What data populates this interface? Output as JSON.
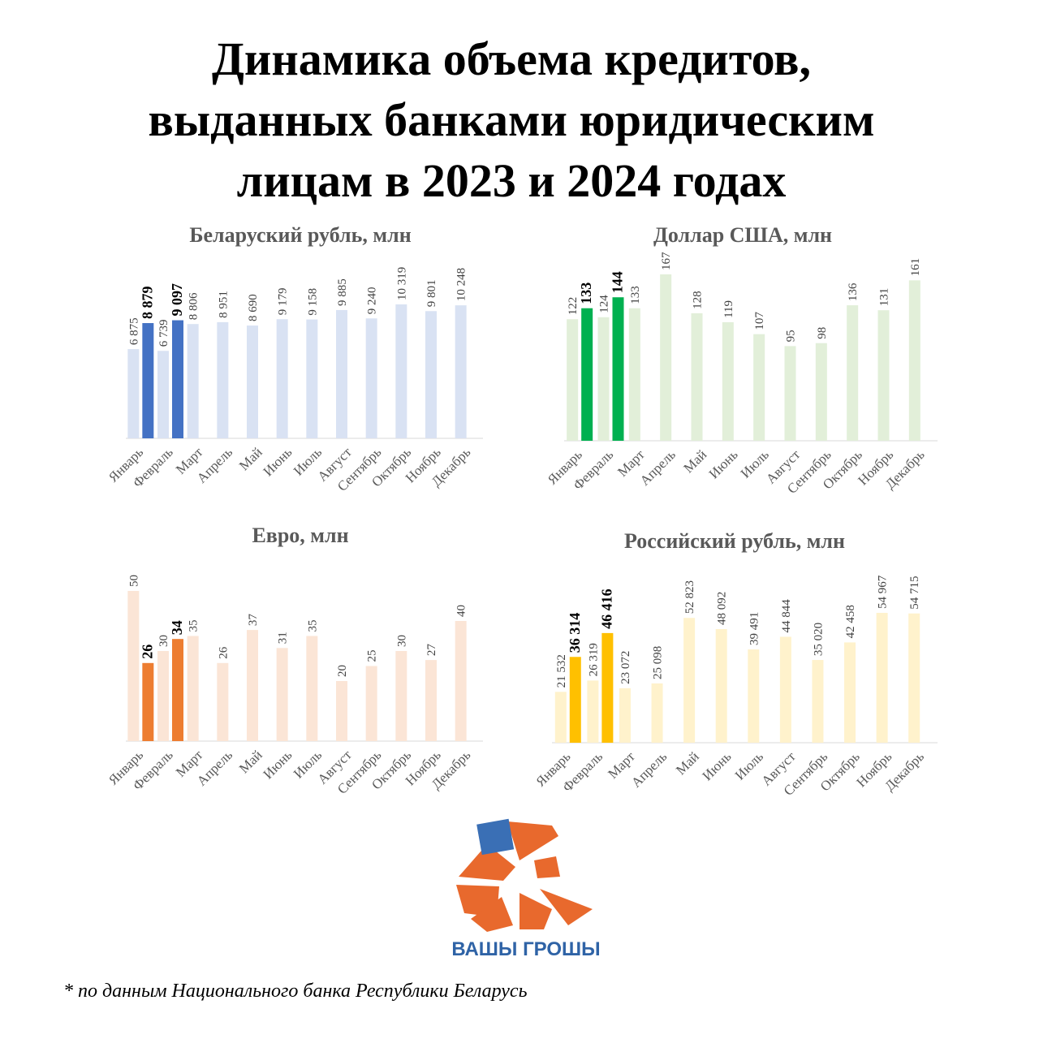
{
  "title": [
    "Динамика объема кредитов,",
    "выданных банками юридическим",
    "лицам в 2023 и 2024 годах"
  ],
  "logo_text": "ВАШЫ ГРОШЫ",
  "footnote": "* по данным Национального банка Республики Беларусь",
  "chart_data": [
    {
      "type": "bar",
      "title": "Беларуский рубль, млн",
      "categories": [
        "Январь",
        "Февраль",
        "Март",
        "Апрель",
        "Май",
        "Июнь",
        "Июль",
        "Август",
        "Сентябрь",
        "Октябрь",
        "Ноябрь",
        "Декабрь"
      ],
      "series": [
        {
          "color": "#d9e2f3",
          "values": [
            6875,
            6739,
            8806,
            8951,
            8690,
            9179,
            9158,
            9885,
            9240,
            10319,
            9801,
            10248
          ],
          "value_labels": [
            "6 875",
            "6 739",
            "8 806",
            "8 951",
            "8 690",
            "9 179",
            "9 158",
            "9 885",
            "9 240",
            "10 319",
            "9 801",
            "10 248"
          ]
        },
        {
          "color": "#4472c4",
          "values": [
            8879,
            9097,
            null,
            null,
            null,
            null,
            null,
            null,
            null,
            null,
            null,
            null
          ],
          "value_labels": [
            "8 879",
            "9 097",
            null,
            null,
            null,
            null,
            null,
            null,
            null,
            null,
            null,
            null
          ]
        }
      ]
    },
    {
      "type": "bar",
      "title": "Доллар США, млн",
      "categories": [
        "Январь",
        "Февраль",
        "Март",
        "Апрель",
        "Май",
        "Июнь",
        "Июль",
        "Август",
        "Сентябрь",
        "Октябрь",
        "Ноябрь",
        "Декабрь"
      ],
      "series": [
        {
          "color": "#e2efd9",
          "values": [
            122,
            124,
            133,
            167,
            128,
            119,
            107,
            95,
            98,
            136,
            131,
            161
          ]
        },
        {
          "color": "#00b050",
          "values": [
            133,
            144,
            null,
            null,
            null,
            null,
            null,
            null,
            null,
            null,
            null,
            null
          ]
        }
      ]
    },
    {
      "type": "bar",
      "title": "Евро, млн",
      "categories": [
        "Январь",
        "Февраль",
        "Март",
        "Апрель",
        "Май",
        "Июнь",
        "Июль",
        "Август",
        "Сентябрь",
        "Октябрь",
        "Ноябрь",
        "Декабрь"
      ],
      "series": [
        {
          "color": "#fbe5d6",
          "values": [
            50,
            30,
            35,
            26,
            37,
            31,
            35,
            20,
            25,
            30,
            27,
            40
          ]
        },
        {
          "color": "#ed7d31",
          "values": [
            26,
            34,
            null,
            null,
            null,
            null,
            null,
            null,
            null,
            null,
            null,
            null
          ]
        }
      ]
    },
    {
      "type": "bar",
      "title": "Российский рубль, млн",
      "categories": [
        "Январь",
        "Февраль",
        "Март",
        "Апрель",
        "Май",
        "Июнь",
        "Июль",
        "Август",
        "Сентябрь",
        "Октябрь",
        "Ноябрь",
        "Декабрь"
      ],
      "series": [
        {
          "color": "#fff2cc",
          "values": [
            21532,
            26319,
            23072,
            25098,
            52823,
            48092,
            39491,
            44844,
            35020,
            42458,
            54967,
            54715
          ],
          "value_labels": [
            "21 532",
            "26 319",
            "23 072",
            "25 098",
            "52 823",
            "48 092",
            "39 491",
            "44 844",
            "35 020",
            "42 458",
            "54 967",
            "54 715"
          ]
        },
        {
          "color": "#ffc000",
          "values": [
            36314,
            46416,
            null,
            null,
            null,
            null,
            null,
            null,
            null,
            null,
            null,
            null
          ],
          "value_labels": [
            "36 314",
            "46 416",
            null,
            null,
            null,
            null,
            null,
            null,
            null,
            null,
            null,
            null
          ]
        }
      ]
    }
  ]
}
